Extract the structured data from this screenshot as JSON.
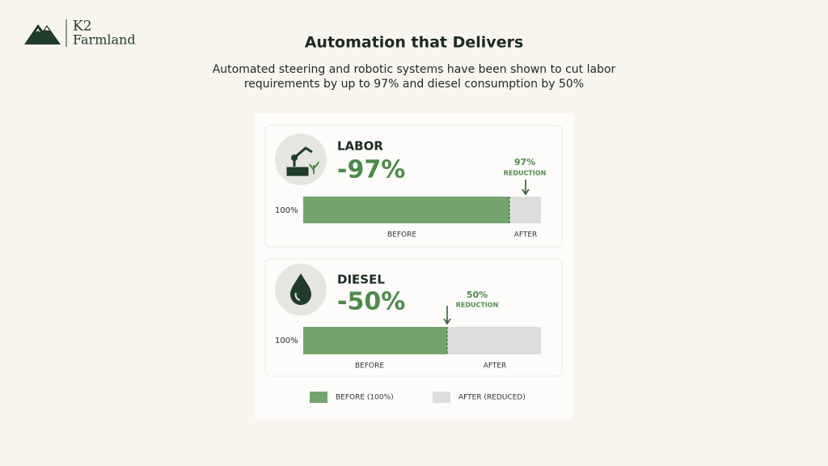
{
  "header": {
    "logo_top": "K2",
    "logo_bottom": "Farmland",
    "title": "Automation that Delivers",
    "subtitle_lines": [
      "Automated steering and robotic systems have been shown to cut labor",
      "requirements by up to 97% and diesel consumption by 50%"
    ]
  },
  "panels": [
    {
      "label": "LABOR",
      "change": "-97%",
      "reduction": "97%",
      "reduction_caption": "REDUCTION",
      "bar_label": "100%",
      "before": "BEFORE",
      "after": "AFTER"
    },
    {
      "label": "DIESEL",
      "change": "-50%",
      "reduction": "50%",
      "reduction_caption": "REDUCTION",
      "bar_label": "100%",
      "before": "BEFORE",
      "after": "AFTER"
    }
  ],
  "legend": [
    "BEFORE (100%)",
    "AFTER (REDUCED)"
  ]
}
